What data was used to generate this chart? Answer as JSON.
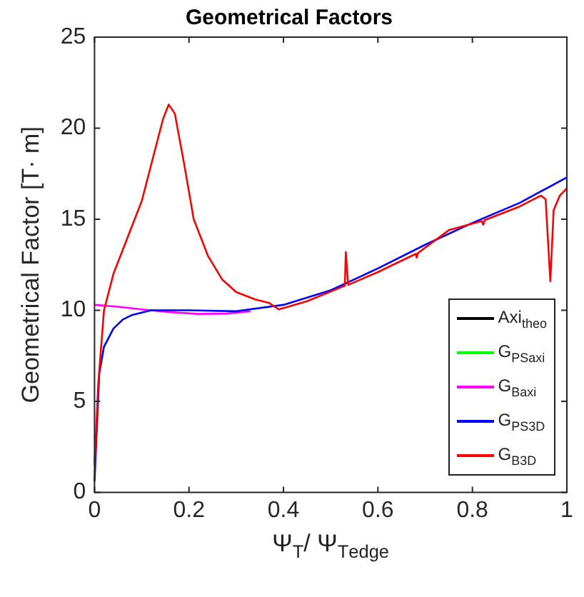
{
  "chart_data": {
    "type": "line",
    "title": "Geometrical Factors",
    "xlabel": "Ψ$_{T}$/ Ψ$_{T}$$_{edge}$",
    "ylabel": "Geometrical Factor [T· m]",
    "xlim": [
      0,
      1
    ],
    "xticks": [
      0,
      0.2,
      0.4,
      0.6,
      0.8,
      1
    ],
    "ylim": [
      0,
      25
    ],
    "yticks": [
      0,
      5,
      10,
      15,
      20,
      25
    ],
    "grid": false,
    "legend": "bottom right",
    "marker": "none",
    "line_style": "solid",
    "series": [
      {
        "name": "Axi$_{theo}$",
        "color": "#000000"
      },
      {
        "name": "G$_{PS}$$_{axi}$",
        "color": "#00ff00"
      },
      {
        "name": "G$_{B}$$_{axi}$",
        "color": "#ff00ff",
        "x": [
          0,
          0.05,
          0.1,
          0.16,
          0.22,
          0.28,
          0.33
        ],
        "values": [
          10.3,
          10.2,
          10.05,
          9.9,
          9.8,
          9.82,
          9.95
        ]
      },
      {
        "name": "G$_{PS}$$_{3D}$",
        "color": "#0000ff",
        "x": [
          0,
          0.01,
          0.02,
          0.04,
          0.06,
          0.08,
          0.12,
          0.2,
          0.3,
          0.4,
          0.5,
          0.6,
          0.7,
          0.8,
          0.9,
          1
        ],
        "values": [
          0.6,
          6.5,
          8,
          9,
          9.5,
          9.75,
          10,
          10,
          9.95,
          10.3,
          11.1,
          12.3,
          13.6,
          14.8,
          15.9,
          17.3
        ]
      },
      {
        "name": "G$_{B}$$_{3D}$",
        "color": "#ff0000",
        "x": [
          0,
          0.008,
          0.02,
          0.04,
          0.07,
          0.1,
          0.12,
          0.145,
          0.157,
          0.17,
          0.19,
          0.21,
          0.24,
          0.27,
          0.3,
          0.34,
          0.37,
          0.39,
          0.41,
          0.45,
          0.53,
          0.532,
          0.537,
          0.6,
          0.68,
          0.682,
          0.685,
          0.75,
          0.82,
          0.823,
          0.826,
          0.9,
          0.945,
          0.955,
          0.965,
          0.972,
          0.985,
          1
        ],
        "values": [
          1.5,
          6,
          10,
          12,
          14,
          16,
          18,
          20.5,
          21.3,
          20.8,
          18,
          15,
          13,
          11.7,
          11,
          10.6,
          10.4,
          10.05,
          10.2,
          10.5,
          11.35,
          13.2,
          11.4,
          12.1,
          13.1,
          12.9,
          13.15,
          14.4,
          14.9,
          14.7,
          14.95,
          15.7,
          16.3,
          16.1,
          11.6,
          15.5,
          16.3,
          16.7
        ]
      }
    ]
  }
}
